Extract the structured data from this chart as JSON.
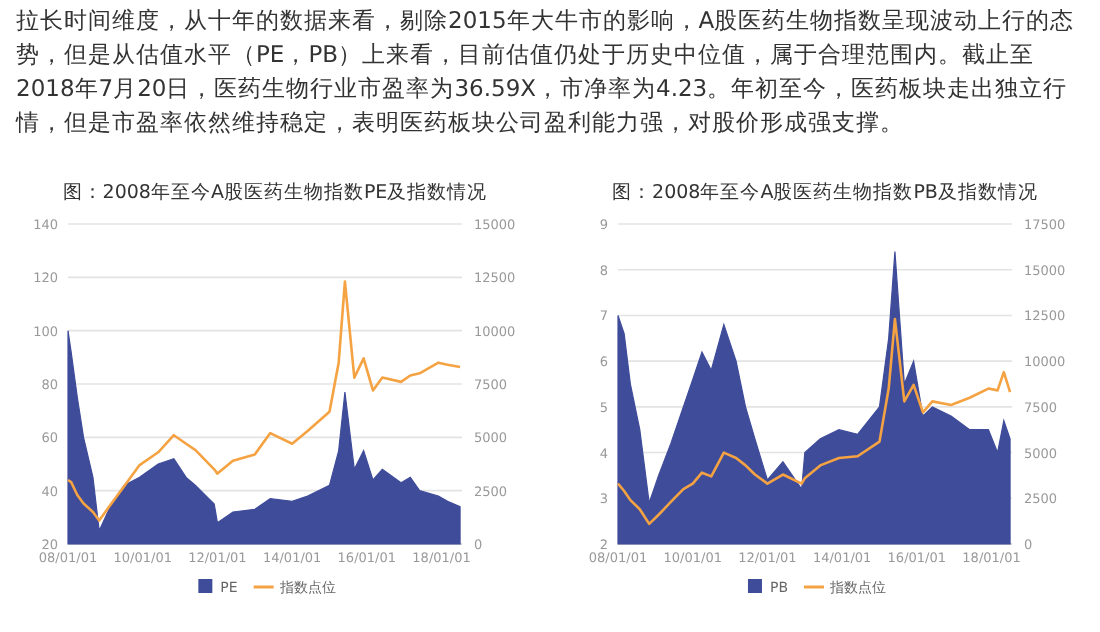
{
  "chart_data": [
    {
      "type": "other",
      "annotations": [
        "拉长时间维度，从十年的数据来看，剔除2015年大牛市的影响，A股医药生物指数呈现波动上行的态势，但是从估值水平（PE，PB）上来看，目前估值仍处于历史中位值，属于合理范围内。截止至2018年7月20日，医药生物行业市盈率为36.59X，市净率为4.23。年初至今，医药板块走出独立行情，但是市盈率依然维持稳定，表明医药板块公司盈利能力强，对股价形成强支撑。"
      ]
    },
    {
      "type": "area",
      "title": "图：2008年至今A股医药生物指数PE及指数情况",
      "grid": "y",
      "legend": "bottom",
      "xlim": [
        "2008-01-01",
        "2018-07-20"
      ],
      "xticks": [
        {
          "value": "2008-01-01",
          "label": "08/01/01"
        },
        {
          "value": "2010-01-01",
          "label": "10/01/01"
        },
        {
          "value": "2012-01-01",
          "label": "12/01/01"
        },
        {
          "value": "2014-01-01",
          "label": "14/01/01"
        },
        {
          "value": "2016-01-01",
          "label": "16/01/01"
        },
        {
          "value": "2018-01-01",
          "label": "18/01/01"
        }
      ],
      "ylim": [
        20,
        140
      ],
      "yticks": [
        20,
        40,
        60,
        80,
        100,
        120,
        140
      ],
      "y2lim": [
        0,
        15000
      ],
      "y2ticks": [
        0,
        2500,
        5000,
        7500,
        10000,
        12500,
        15000
      ],
      "x": [
        "2008-01",
        "2008-02",
        "2008-04",
        "2008-06",
        "2008-09",
        "2008-11",
        "2009-03",
        "2009-07",
        "2009-12",
        "2010-06",
        "2010-11",
        "2011-03",
        "2011-06",
        "2011-12",
        "2012-01",
        "2012-06",
        "2013-01",
        "2013-06",
        "2014-01",
        "2014-06",
        "2015-01",
        "2015-04",
        "2015-06",
        "2015-09",
        "2015-12",
        "2016-03",
        "2016-06",
        "2016-12",
        "2017-03",
        "2017-06",
        "2017-12",
        "2018-03",
        "2018-07"
      ],
      "series": [
        {
          "name": "PE",
          "type": "area",
          "color": "#3f4c9a",
          "values": [
            100,
            92,
            75,
            60,
            45,
            25,
            35,
            42,
            45,
            50,
            52,
            45,
            42,
            35,
            28,
            32,
            33,
            37,
            36,
            38,
            42,
            55,
            77,
            48,
            55,
            44,
            48,
            43,
            45,
            40,
            38,
            36,
            34
          ]
        },
        {
          "name": "指数点位",
          "type": "line",
          "axis": "y2",
          "color": "#f5a342",
          "values": [
            3000,
            2900,
            2300,
            1900,
            1500,
            1100,
            1900,
            2700,
            3700,
            4300,
            5100,
            4700,
            4400,
            3500,
            3300,
            3900,
            4200,
            5200,
            4700,
            5300,
            6200,
            8500,
            12300,
            7800,
            8700,
            7200,
            7800,
            7600,
            7900,
            8000,
            8500,
            8400,
            8300
          ]
        }
      ]
    },
    {
      "type": "area",
      "title": "图：2008年至今A股医药生物指数PB及指数情况",
      "grid": "y",
      "legend": "bottom",
      "xlim": [
        "2008-01-01",
        "2018-07-20"
      ],
      "xticks": [
        {
          "value": "2008-01-01",
          "label": "08/01/01"
        },
        {
          "value": "2010-01-01",
          "label": "10/01/01"
        },
        {
          "value": "2012-01-01",
          "label": "12/01/01"
        },
        {
          "value": "2014-01-01",
          "label": "14/01/01"
        },
        {
          "value": "2016-01-01",
          "label": "16/01/01"
        },
        {
          "value": "2018-01-01",
          "label": "18/01/01"
        }
      ],
      "ylim": [
        2,
        9
      ],
      "yticks": [
        2,
        3,
        4,
        5,
        6,
        7,
        8,
        9
      ],
      "y2lim": [
        0,
        17500
      ],
      "y2ticks": [
        0,
        2500,
        5000,
        7500,
        10000,
        12500,
        15000,
        17500
      ],
      "x": [
        "2008-01",
        "2008-03",
        "2008-05",
        "2008-08",
        "2008-11",
        "2009-02",
        "2009-06",
        "2009-10",
        "2010-01",
        "2010-04",
        "2010-07",
        "2010-11",
        "2011-03",
        "2011-06",
        "2011-09",
        "2012-01",
        "2012-06",
        "2012-12",
        "2013-01",
        "2013-06",
        "2013-12",
        "2014-06",
        "2015-01",
        "2015-04",
        "2015-06",
        "2015-09",
        "2015-12",
        "2016-03",
        "2016-06",
        "2016-12",
        "2017-06",
        "2017-12",
        "2018-03",
        "2018-05",
        "2018-07"
      ],
      "series": [
        {
          "name": "PB",
          "type": "area",
          "color": "#3f4c9a",
          "values": [
            7.0,
            6.6,
            5.5,
            4.5,
            2.9,
            3.5,
            4.2,
            5.0,
            5.6,
            6.2,
            5.8,
            6.8,
            6.0,
            5.0,
            4.3,
            3.4,
            3.8,
            3.2,
            4.0,
            4.3,
            4.5,
            4.4,
            5.0,
            6.5,
            8.4,
            5.5,
            6.0,
            4.8,
            5.0,
            4.8,
            4.5,
            4.5,
            4.0,
            4.7,
            4.3
          ]
        },
        {
          "name": "指数点位",
          "type": "line",
          "axis": "y2",
          "color": "#f5a342",
          "values": [
            3300,
            2900,
            2400,
            1900,
            1100,
            1600,
            2300,
            3000,
            3300,
            3900,
            3700,
            5000,
            4700,
            4300,
            3800,
            3300,
            3800,
            3300,
            3600,
            4300,
            4700,
            4800,
            5600,
            8500,
            12300,
            7800,
            8700,
            7200,
            7800,
            7600,
            8000,
            8500,
            8400,
            9400,
            8300
          ]
        }
      ]
    }
  ]
}
